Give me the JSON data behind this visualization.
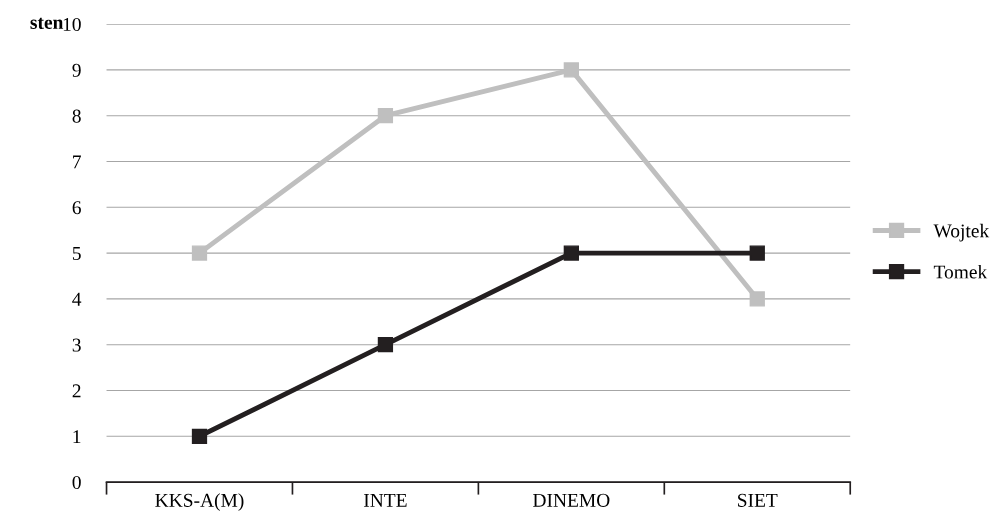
{
  "chart_data": {
    "type": "line",
    "ylabel": "sten",
    "categories": [
      "KKS-A(M)",
      "INTE",
      "DINEMO",
      "SIET"
    ],
    "series": [
      {
        "name": "Wojtek",
        "color": "#bfbfbf",
        "values": [
          5,
          8,
          9,
          4
        ]
      },
      {
        "name": "Tomek",
        "color": "#231f20",
        "values": [
          1,
          3,
          5,
          5
        ]
      }
    ],
    "ylim": [
      0,
      10
    ],
    "yticks": [
      0,
      1,
      2,
      3,
      4,
      5,
      6,
      7,
      8,
      9,
      10
    ],
    "grid": "y",
    "legend": "right",
    "marker": "square",
    "line_style": "solid"
  }
}
